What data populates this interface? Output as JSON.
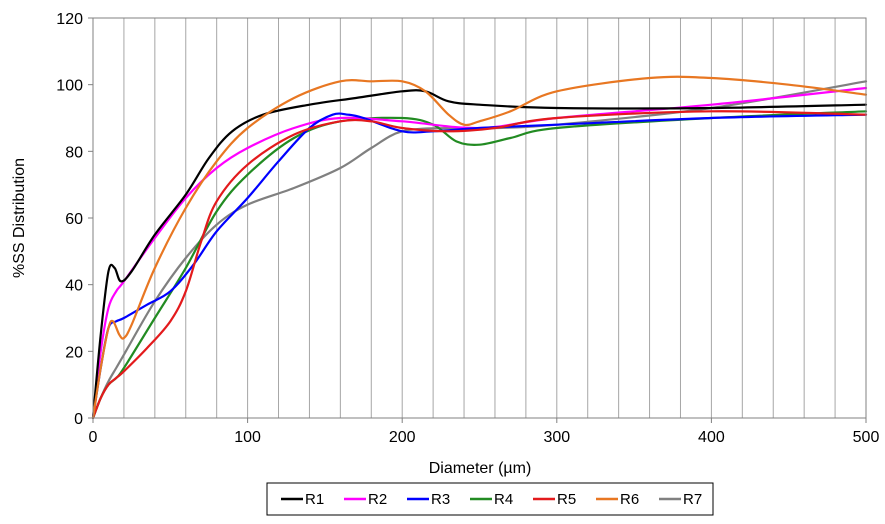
{
  "chart_data": {
    "type": "line",
    "title": "",
    "xlabel": "Diameter (µm)",
    "ylabel": "%SS Distribution",
    "xlim": [
      0,
      500
    ],
    "ylim": [
      0,
      120
    ],
    "x_ticks": [
      "0",
      "100",
      "200",
      "300",
      "400",
      "500"
    ],
    "y_ticks": [
      "0",
      "20",
      "40",
      "60",
      "80",
      "100",
      "120"
    ],
    "grid": {
      "vertical": true,
      "horizontal": false
    },
    "legend_position": "bottom",
    "series": [
      {
        "name": "R1",
        "color": "#000000",
        "x": [
          0,
          5,
          10,
          14,
          18,
          25,
          40,
          60,
          75,
          90,
          110,
          140,
          170,
          200,
          215,
          230,
          250,
          300,
          400,
          500
        ],
        "y": [
          0,
          25,
          44,
          45,
          41,
          44,
          55,
          67,
          78,
          86,
          91,
          94,
          96,
          98,
          98,
          95,
          94,
          93,
          93,
          94
        ]
      },
      {
        "name": "R2",
        "color": "#ff00ff",
        "x": [
          0,
          5,
          10,
          15,
          20,
          40,
          60,
          80,
          100,
          130,
          160,
          200,
          250,
          300,
          400,
          500
        ],
        "y": [
          0,
          20,
          33,
          38,
          41,
          54,
          66,
          75,
          81,
          87,
          90,
          89,
          87,
          90,
          94,
          99
        ]
      },
      {
        "name": "R3",
        "color": "#0000ff",
        "x": [
          0,
          5,
          10,
          15,
          20,
          35,
          50,
          65,
          80,
          100,
          120,
          140,
          155,
          165,
          175,
          200,
          220,
          250,
          300,
          400,
          500
        ],
        "y": [
          0,
          15,
          27,
          29,
          30,
          34,
          38,
          46,
          56,
          66,
          77,
          87,
          91,
          91,
          90,
          86,
          86,
          87,
          88,
          90,
          91
        ]
      },
      {
        "name": "R4",
        "color": "#228b22",
        "x": [
          0,
          5,
          10,
          15,
          20,
          40,
          60,
          80,
          100,
          130,
          160,
          200,
          220,
          235,
          250,
          270,
          300,
          400,
          500
        ],
        "y": [
          0,
          6,
          10,
          12,
          15,
          30,
          45,
          62,
          73,
          84,
          89,
          90,
          88,
          83,
          82,
          84,
          87,
          90,
          92
        ]
      },
      {
        "name": "R5",
        "color": "#e31a1c",
        "x": [
          0,
          5,
          10,
          15,
          20,
          35,
          50,
          60,
          70,
          80,
          100,
          130,
          160,
          180,
          200,
          230,
          260,
          300,
          400,
          500
        ],
        "y": [
          0,
          6,
          10,
          12,
          14,
          21,
          29,
          38,
          53,
          65,
          76,
          85,
          89,
          89,
          87,
          86,
          87,
          90,
          92,
          91
        ]
      },
      {
        "name": "R6",
        "color": "#e87722",
        "x": [
          0,
          5,
          10,
          13,
          17,
          20,
          25,
          40,
          60,
          80,
          100,
          130,
          160,
          180,
          200,
          215,
          230,
          240,
          250,
          270,
          300,
          360,
          400,
          450,
          500
        ],
        "y": [
          0,
          15,
          27,
          29,
          25,
          24,
          28,
          45,
          63,
          77,
          87,
          96,
          101,
          101,
          101,
          98,
          91,
          88,
          89,
          92,
          98,
          102,
          102,
          100,
          97
        ]
      },
      {
        "name": "R7",
        "color": "#808080",
        "x": [
          0,
          5,
          10,
          15,
          20,
          40,
          60,
          80,
          100,
          130,
          160,
          180,
          200,
          230,
          260,
          300,
          400,
          500
        ],
        "y": [
          0,
          6,
          11,
          15,
          19,
          35,
          48,
          58,
          64,
          69,
          75,
          81,
          86,
          87,
          87,
          88,
          93,
          101
        ]
      }
    ]
  }
}
